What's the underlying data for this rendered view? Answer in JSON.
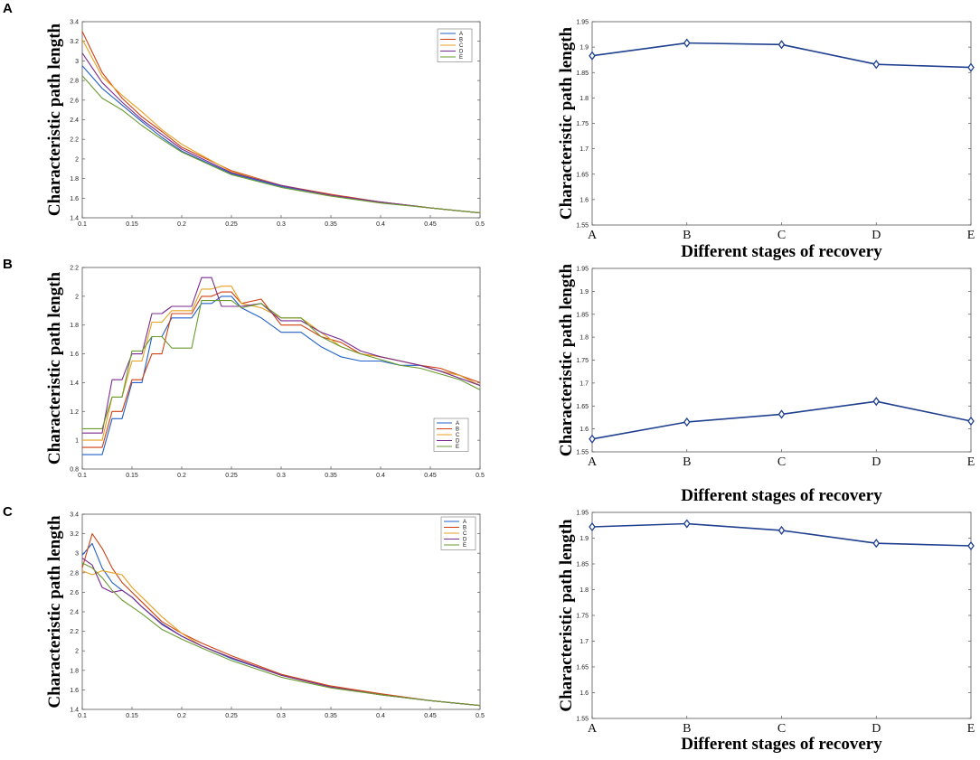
{
  "chart_data": [
    {
      "panel": "A",
      "type": "line",
      "ylabel": "Characteristic path length",
      "xlabel": "",
      "xlim": [
        0.1,
        0.5
      ],
      "ylim": [
        1.4,
        3.4
      ],
      "xticks": [
        0.1,
        0.15,
        0.2,
        0.25,
        0.3,
        0.35,
        0.4,
        0.45,
        0.5
      ],
      "yticks": [
        1.4,
        1.6,
        1.8,
        2,
        2.2,
        2.4,
        2.6,
        2.8,
        3,
        3.2,
        3.4
      ],
      "legend": "top-right",
      "x": [
        0.1,
        0.12,
        0.14,
        0.16,
        0.18,
        0.2,
        0.25,
        0.3,
        0.35,
        0.4,
        0.45,
        0.5
      ],
      "series": [
        {
          "name": "A",
          "color": "#2060c8",
          "values": [
            2.95,
            2.72,
            2.55,
            2.38,
            2.22,
            2.08,
            1.85,
            1.72,
            1.63,
            1.56,
            1.5,
            1.45
          ]
        },
        {
          "name": "B",
          "color": "#d04010",
          "values": [
            3.3,
            2.88,
            2.62,
            2.43,
            2.28,
            2.12,
            1.88,
            1.73,
            1.64,
            1.56,
            1.5,
            1.45
          ]
        },
        {
          "name": "C",
          "color": "#e8a020",
          "values": [
            3.22,
            2.84,
            2.65,
            2.48,
            2.3,
            2.15,
            1.87,
            1.73,
            1.63,
            1.56,
            1.5,
            1.45
          ]
        },
        {
          "name": "D",
          "color": "#7a2a90",
          "values": [
            3.08,
            2.78,
            2.58,
            2.4,
            2.25,
            2.1,
            1.86,
            1.73,
            1.63,
            1.56,
            1.5,
            1.45
          ]
        },
        {
          "name": "E",
          "color": "#6a9a30",
          "values": [
            2.85,
            2.62,
            2.5,
            2.34,
            2.2,
            2.07,
            1.84,
            1.71,
            1.62,
            1.55,
            1.5,
            1.45
          ]
        }
      ]
    },
    {
      "panel": "A",
      "type": "line",
      "ylabel": "Characteristic path length",
      "xlabel": "Different stages of recovery",
      "categories": [
        "A",
        "B",
        "C",
        "D",
        "E"
      ],
      "ylim": [
        1.55,
        1.95
      ],
      "yticks": [
        1.55,
        1.6,
        1.65,
        1.7,
        1.75,
        1.8,
        1.85,
        1.9,
        1.95
      ],
      "series": [
        {
          "name": "path length",
          "color": "#1f3f8f",
          "values": [
            1.883,
            1.908,
            1.905,
            1.866,
            1.86
          ]
        }
      ]
    },
    {
      "panel": "B",
      "type": "line",
      "ylabel": "Characteristic path length",
      "xlabel": "",
      "xlim": [
        0.1,
        0.5
      ],
      "ylim": [
        0.8,
        2.2
      ],
      "xticks": [
        0.1,
        0.15,
        0.2,
        0.25,
        0.3,
        0.35,
        0.4,
        0.45,
        0.5
      ],
      "yticks": [
        0.8,
        1,
        1.2,
        1.4,
        1.6,
        1.8,
        2,
        2.2
      ],
      "legend": "bottom-right",
      "x": [
        0.1,
        0.12,
        0.13,
        0.14,
        0.15,
        0.16,
        0.17,
        0.18,
        0.19,
        0.2,
        0.21,
        0.22,
        0.23,
        0.24,
        0.25,
        0.26,
        0.28,
        0.3,
        0.32,
        0.34,
        0.36,
        0.38,
        0.4,
        0.42,
        0.44,
        0.46,
        0.48,
        0.5
      ],
      "series": [
        {
          "name": "A",
          "color": "#2060c8",
          "values": [
            0.9,
            0.9,
            1.15,
            1.15,
            1.4,
            1.4,
            1.72,
            1.72,
            1.85,
            1.85,
            1.85,
            1.95,
            1.95,
            2.0,
            2.0,
            1.92,
            1.85,
            1.75,
            1.75,
            1.65,
            1.58,
            1.55,
            1.55,
            1.52,
            1.52,
            1.48,
            1.45,
            1.38
          ]
        },
        {
          "name": "B",
          "color": "#d04010",
          "values": [
            0.95,
            0.95,
            1.2,
            1.2,
            1.42,
            1.42,
            1.6,
            1.6,
            1.88,
            1.88,
            1.88,
            2.0,
            2.0,
            2.03,
            2.03,
            1.95,
            1.98,
            1.8,
            1.8,
            1.72,
            1.68,
            1.6,
            1.58,
            1.55,
            1.52,
            1.5,
            1.45,
            1.4
          ]
        },
        {
          "name": "C",
          "color": "#e8a020",
          "values": [
            1.0,
            1.0,
            1.3,
            1.3,
            1.55,
            1.55,
            1.82,
            1.82,
            1.9,
            1.9,
            1.9,
            2.05,
            2.05,
            2.07,
            2.07,
            1.95,
            1.92,
            1.85,
            1.85,
            1.75,
            1.65,
            1.6,
            1.58,
            1.55,
            1.52,
            1.48,
            1.45,
            1.38
          ]
        },
        {
          "name": "D",
          "color": "#7a2a90",
          "values": [
            1.05,
            1.05,
            1.42,
            1.42,
            1.6,
            1.6,
            1.88,
            1.88,
            1.93,
            1.93,
            1.93,
            2.13,
            2.13,
            1.93,
            1.93,
            1.93,
            1.95,
            1.83,
            1.83,
            1.75,
            1.7,
            1.62,
            1.58,
            1.55,
            1.52,
            1.48,
            1.43,
            1.38
          ]
        },
        {
          "name": "E",
          "color": "#6a9a30",
          "values": [
            1.08,
            1.08,
            1.3,
            1.3,
            1.62,
            1.62,
            1.72,
            1.72,
            1.64,
            1.64,
            1.64,
            1.97,
            1.97,
            1.97,
            1.97,
            1.92,
            1.95,
            1.85,
            1.85,
            1.72,
            1.65,
            1.6,
            1.56,
            1.52,
            1.5,
            1.46,
            1.42,
            1.35
          ]
        }
      ]
    },
    {
      "panel": "B",
      "type": "line",
      "ylabel": "Characteristic path length",
      "xlabel": "Different stages of recovery",
      "categories": [
        "A",
        "B",
        "C",
        "D",
        "E"
      ],
      "ylim": [
        1.55,
        1.95
      ],
      "yticks": [
        1.55,
        1.6,
        1.65,
        1.7,
        1.75,
        1.8,
        1.85,
        1.9,
        1.95
      ],
      "series": [
        {
          "name": "path length",
          "color": "#1f3f8f",
          "values": [
            1.578,
            1.615,
            1.632,
            1.66,
            1.617
          ]
        }
      ]
    },
    {
      "panel": "C",
      "type": "line",
      "ylabel": "Characteristic path length",
      "xlabel": "",
      "xlim": [
        0.1,
        0.5
      ],
      "ylim": [
        1.4,
        3.4
      ],
      "xticks": [
        0.1,
        0.15,
        0.2,
        0.25,
        0.3,
        0.35,
        0.4,
        0.45,
        0.5
      ],
      "yticks": [
        1.4,
        1.6,
        1.8,
        2,
        2.2,
        2.4,
        2.6,
        2.8,
        3,
        3.2,
        3.4
      ],
      "legend": "top-right",
      "x": [
        0.1,
        0.11,
        0.12,
        0.13,
        0.14,
        0.15,
        0.16,
        0.18,
        0.2,
        0.22,
        0.25,
        0.3,
        0.35,
        0.4,
        0.45,
        0.5
      ],
      "series": [
        {
          "name": "A",
          "color": "#2060c8",
          "values": [
            2.98,
            3.1,
            2.85,
            2.7,
            2.62,
            2.55,
            2.45,
            2.28,
            2.15,
            2.05,
            1.92,
            1.75,
            1.63,
            1.55,
            1.49,
            1.44
          ]
        },
        {
          "name": "B",
          "color": "#d04010",
          "values": [
            2.85,
            3.2,
            3.05,
            2.85,
            2.7,
            2.6,
            2.5,
            2.3,
            2.18,
            2.08,
            1.95,
            1.76,
            1.64,
            1.56,
            1.49,
            1.44
          ]
        },
        {
          "name": "C",
          "color": "#e8a020",
          "values": [
            2.82,
            2.78,
            2.82,
            2.8,
            2.78,
            2.65,
            2.55,
            2.35,
            2.18,
            2.05,
            1.93,
            1.75,
            1.63,
            1.55,
            1.49,
            1.44
          ]
        },
        {
          "name": "D",
          "color": "#7a2a90",
          "values": [
            2.95,
            2.88,
            2.65,
            2.6,
            2.62,
            2.55,
            2.45,
            2.27,
            2.15,
            2.05,
            1.93,
            1.75,
            1.63,
            1.55,
            1.49,
            1.44
          ]
        },
        {
          "name": "E",
          "color": "#6a9a30",
          "values": [
            2.9,
            2.85,
            2.75,
            2.62,
            2.52,
            2.45,
            2.38,
            2.22,
            2.12,
            2.03,
            1.9,
            1.73,
            1.62,
            1.55,
            1.49,
            1.44
          ]
        }
      ]
    },
    {
      "panel": "C",
      "type": "line",
      "ylabel": "Characteristic path length",
      "xlabel": "Different stages of recovery",
      "categories": [
        "A",
        "B",
        "C",
        "D",
        "E"
      ],
      "ylim": [
        1.55,
        1.95
      ],
      "yticks": [
        1.55,
        1.6,
        1.65,
        1.7,
        1.75,
        1.8,
        1.85,
        1.9,
        1.95
      ],
      "series": [
        {
          "name": "path length",
          "color": "#1f3f8f",
          "values": [
            1.922,
            1.928,
            1.915,
            1.89,
            1.885
          ]
        }
      ]
    }
  ]
}
